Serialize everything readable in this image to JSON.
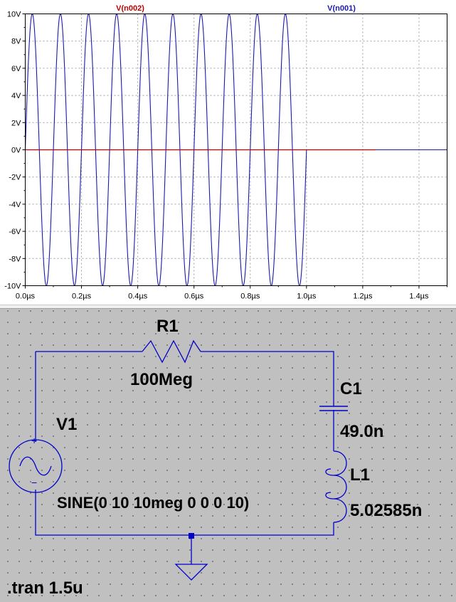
{
  "waveform": {
    "traces": [
      {
        "name": "V(n002)",
        "color": "#c00000"
      },
      {
        "name": "V(n001)",
        "color": "#1a1aaa"
      }
    ],
    "background": "#ffffff",
    "grid_color": "#a0a0a0",
    "y_ticks": [
      "10V",
      "8V",
      "6V",
      "4V",
      "2V",
      "0V",
      "-2V",
      "-4V",
      "-6V",
      "-8V",
      "-10V"
    ],
    "x_ticks": [
      "0.0µs",
      "0.2µs",
      "0.4µs",
      "0.6µs",
      "0.8µs",
      "1.0µs",
      "1.2µs",
      "1.4µs"
    ]
  },
  "chart_data": {
    "type": "line",
    "title": "",
    "xlabel": "",
    "ylabel": "",
    "xlim": [
      0.0,
      1.5
    ],
    "ylim": [
      -10,
      10
    ],
    "x_unit": "µs",
    "y_unit": "V",
    "grid": true,
    "series": [
      {
        "name": "V(n001)",
        "color": "#1a1aaa",
        "kind": "sine",
        "amplitude": 10,
        "frequency_mhz": 10,
        "start": 0.0,
        "end": 1.0,
        "after_end_value": 0,
        "extends_to": 1.5
      },
      {
        "name": "V(n002)",
        "color": "#c00000",
        "kind": "constant",
        "value": 0,
        "start": 0.0,
        "end": 1.245
      }
    ]
  },
  "schematic": {
    "r1": {
      "name": "R1",
      "value": "100Meg"
    },
    "c1": {
      "name": "C1",
      "value": "49.0n"
    },
    "l1": {
      "name": "L1",
      "value": "5.02585n"
    },
    "v1": {
      "name": "V1",
      "value": "SINE(0 10 10meg 0 0 0 10)",
      "plus": "+",
      "minus": "−"
    },
    "directive": ".tran 1.5u",
    "wire_color": "#0000cc"
  }
}
